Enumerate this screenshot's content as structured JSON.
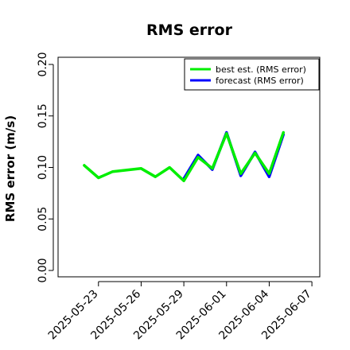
{
  "chart_data": {
    "type": "line",
    "title": "RMS error",
    "xlabel": "",
    "ylabel": "RMS error (m/s)",
    "ylim": [
      0.0,
      0.21
    ],
    "y_ticks": [
      {
        "value": 0.0,
        "label": "0.00"
      },
      {
        "value": 0.05,
        "label": "0.05"
      },
      {
        "value": 0.1,
        "label": "0.10"
      },
      {
        "value": 0.15,
        "label": "0.15"
      },
      {
        "value": 0.2,
        "label": "0.20"
      }
    ],
    "x_range": [
      "2025-05-21",
      "2025-06-08"
    ],
    "x_ticks": [
      {
        "value": "2025-05-23",
        "label": "2025-05-23",
        "color": "#000000"
      },
      {
        "value": "2025-05-26",
        "label": "2025-05-26",
        "color": "#000000"
      },
      {
        "value": "2025-05-29",
        "label": "2025-05-29",
        "color": "#228B22"
      },
      {
        "value": "2025-06-01",
        "label": "2025-06-01",
        "color": "#000000"
      },
      {
        "value": "2025-06-04",
        "label": "2025-06-04",
        "color": "#000000"
      },
      {
        "value": "2025-06-07",
        "label": "2025-06-07",
        "color": "#000000"
      }
    ],
    "grid": false,
    "legend_position": "top-right",
    "series": [
      {
        "name": "forecast (RMS error)",
        "color": "#0000FF",
        "points": [
          {
            "x": "2025-05-29",
            "y": 0.089
          },
          {
            "x": "2025-05-30",
            "y": 0.112
          },
          {
            "x": "2025-05-31",
            "y": 0.098
          },
          {
            "x": "2025-06-01",
            "y": 0.134
          },
          {
            "x": "2025-06-02",
            "y": 0.092
          },
          {
            "x": "2025-06-03",
            "y": 0.115
          },
          {
            "x": "2025-06-04",
            "y": 0.091
          },
          {
            "x": "2025-06-05",
            "y": 0.132
          }
        ]
      },
      {
        "name": "best est. (RMS error)",
        "color": "#00EE00",
        "points": [
          {
            "x": "2025-05-22",
            "y": 0.102
          },
          {
            "x": "2025-05-23",
            "y": 0.09
          },
          {
            "x": "2025-05-24",
            "y": 0.096
          },
          {
            "x": "2025-05-26",
            "y": 0.099
          },
          {
            "x": "2025-05-27",
            "y": 0.091
          },
          {
            "x": "2025-05-28",
            "y": 0.1
          },
          {
            "x": "2025-05-29",
            "y": 0.087
          },
          {
            "x": "2025-05-30",
            "y": 0.11
          },
          {
            "x": "2025-05-31",
            "y": 0.099
          },
          {
            "x": "2025-06-01",
            "y": 0.133
          },
          {
            "x": "2025-06-02",
            "y": 0.094
          },
          {
            "x": "2025-06-03",
            "y": 0.114
          },
          {
            "x": "2025-06-04",
            "y": 0.094
          },
          {
            "x": "2025-06-05",
            "y": 0.134
          }
        ]
      }
    ],
    "legend": [
      {
        "label": "best est. (RMS error)",
        "color": "#00EE00"
      },
      {
        "label": "forecast (RMS error)",
        "color": "#0000FF"
      }
    ]
  }
}
